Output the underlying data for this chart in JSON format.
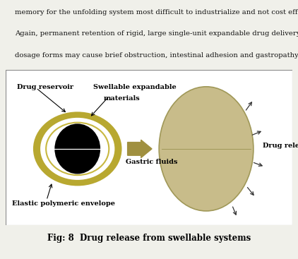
{
  "bg_color": "#f0f0ea",
  "title": "Fig: 8  Drug release from swellable systems",
  "title_fontsize": 8.5,
  "outer_ring_color": "#b8a830",
  "inner_ring_color": "#c8b840",
  "white_fill": "#ffffff",
  "black_fill": "#000000",
  "tan_fill": "#c8bc8a",
  "tan_edge": "#a09858",
  "arrow_fill": "#a09040",
  "label_drug_reservoir": "Drug reservoir",
  "label_swellable_line1": "Swellable expandable",
  "label_swellable_line2": "materials",
  "label_gastric": "Gastric fluids",
  "label_elastic": "Elastic polymeric envelope",
  "label_drug_release": "Drug release",
  "header_lines": [
    "memory for the unfolding system most difficult to industrialize and not cost effective.",
    "Again, permanent retention of rigid, large single-unit expandable drug delivery",
    "dosage forms may cause brief obstruction, intestinal adhesion and gastropathy."
  ]
}
